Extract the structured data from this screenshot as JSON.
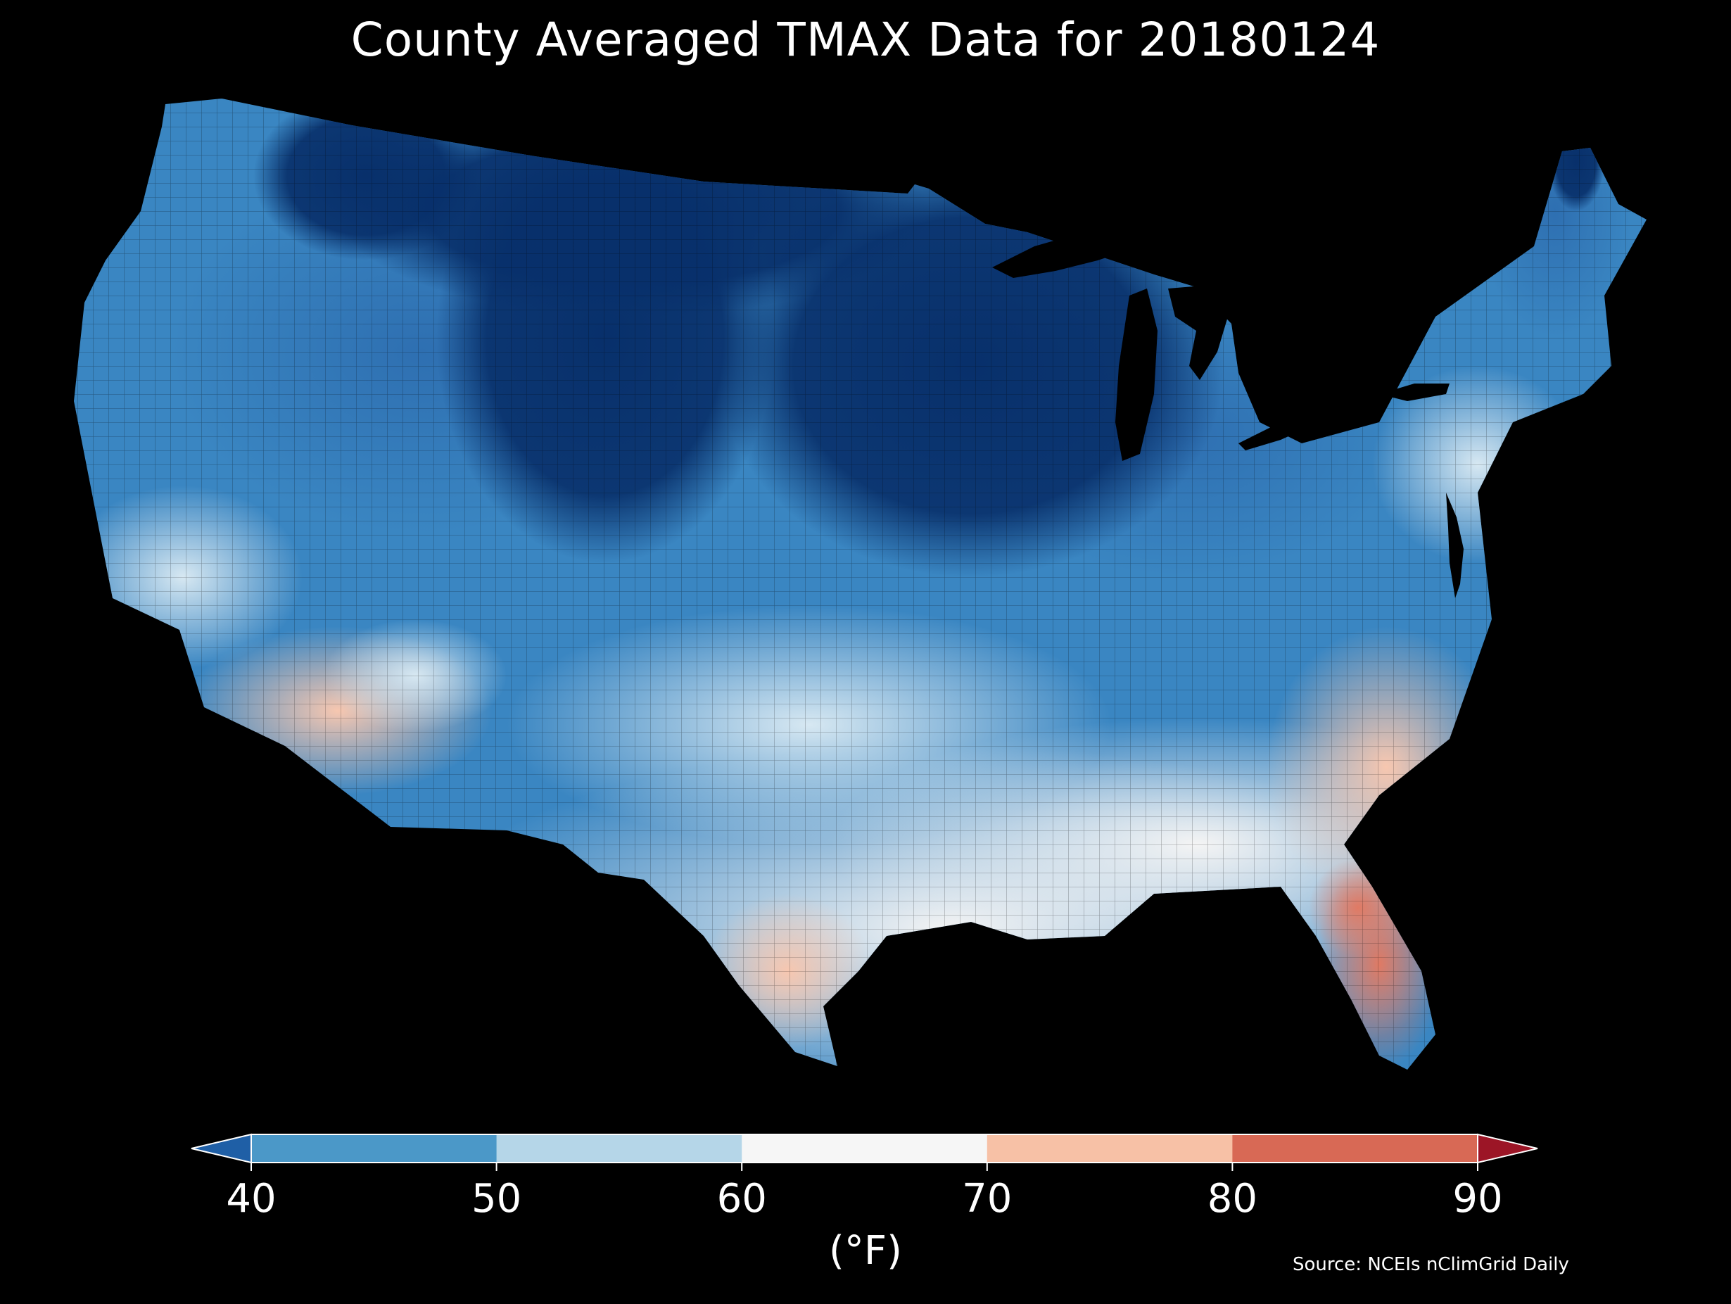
{
  "title": "County Averaged TMAX Data for 20180124",
  "colorbar": {
    "ticks": [
      "40",
      "50",
      "60",
      "70",
      "80",
      "90"
    ],
    "bins": [
      {
        "range": "<40",
        "color": "#1f5fa6"
      },
      {
        "range": "40-50",
        "color": "#4b98c8"
      },
      {
        "range": "50-60",
        "color": "#b5d6e8"
      },
      {
        "range": "60-70",
        "color": "#f6f6f6"
      },
      {
        "range": "70-80",
        "color": "#f7c1a6"
      },
      {
        "range": "80-90",
        "color": "#d86955"
      },
      {
        "range": ">90",
        "color": "#9c1526"
      }
    ],
    "unit_label": "(°F)"
  },
  "source": "Source: NCEIs nClimGrid Daily",
  "map": {
    "region": "Contiguous United States",
    "variable": "TMAX",
    "aggregation": "county average",
    "date": "20180124",
    "pattern": [
      {
        "area": "Northern Plains / Upper Midwest / Rockies",
        "level": "<40"
      },
      {
        "area": "Great Lakes / Northeast interior",
        "level": "<40 to 40-50"
      },
      {
        "area": "Pacific Northwest / Great Basin",
        "level": "40-50"
      },
      {
        "area": "Central Plains / Ohio Valley",
        "level": "40-50"
      },
      {
        "area": "Southern Plains / Deep South",
        "level": "50-60 to 60-70"
      },
      {
        "area": "Southern California / Arizona",
        "level": "60-70 to 70-80"
      },
      {
        "area": "South Texas",
        "level": "70-80"
      },
      {
        "area": "Southeast coast / Georgia",
        "level": "70-80"
      },
      {
        "area": "Florida peninsula",
        "level": "80-90"
      }
    ]
  }
}
